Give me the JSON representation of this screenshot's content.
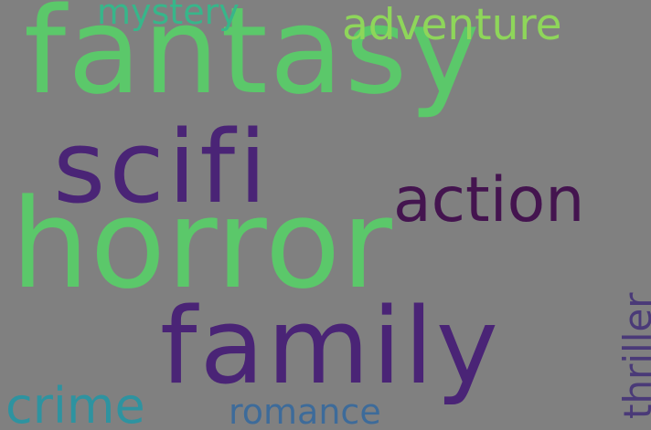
{
  "word_cloud": {
    "background": "#808080",
    "words": [
      {
        "id": "fantasy",
        "text": "fantasy",
        "color": "#5BC86A",
        "orientation": "horizontal"
      },
      {
        "id": "horror",
        "text": "horror",
        "color": "#5BC86A",
        "orientation": "horizontal"
      },
      {
        "id": "scifi",
        "text": "scifi",
        "color": "#4A2476",
        "orientation": "horizontal"
      },
      {
        "id": "family",
        "text": "family",
        "color": "#4A2476",
        "orientation": "horizontal"
      },
      {
        "id": "action",
        "text": "action",
        "color": "#44144F",
        "orientation": "horizontal"
      },
      {
        "id": "adventure",
        "text": "adventure",
        "color": "#8ED65A",
        "orientation": "horizontal"
      },
      {
        "id": "mystery",
        "text": "mystery",
        "color": "#37B68A",
        "orientation": "horizontal"
      },
      {
        "id": "crime",
        "text": "crime",
        "color": "#2E93A0",
        "orientation": "horizontal"
      },
      {
        "id": "romance",
        "text": "romance",
        "color": "#3D6B9A",
        "orientation": "horizontal"
      },
      {
        "id": "thriller",
        "text": "thriller",
        "color": "#4A3A78",
        "orientation": "vertical"
      }
    ]
  }
}
